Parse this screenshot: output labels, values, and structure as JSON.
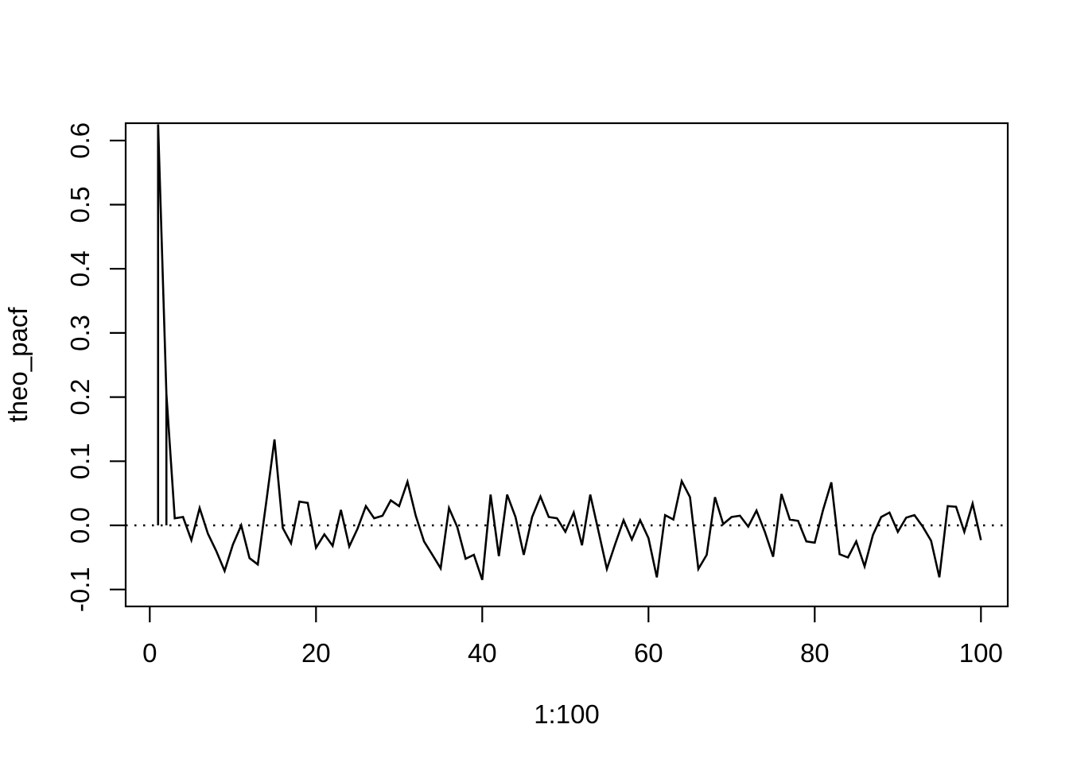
{
  "figure": {
    "background_color": "#ffffff",
    "foreground_color": "#000000",
    "xlab": "1:100",
    "ylab": "theo_pacf",
    "x_tick_labels": [
      "0",
      "20",
      "40",
      "60",
      "80",
      "100"
    ],
    "y_tick_labels": [
      "-0.1",
      "0.0",
      "0.1",
      "0.2",
      "0.3",
      "0.4",
      "0.5",
      "0.6"
    ]
  },
  "chart_data": {
    "type": "line",
    "title": "",
    "xlabel": "1:100",
    "ylabel": "theo_pacf",
    "xlim": [
      -3,
      104
    ],
    "ylim": [
      -0.127,
      0.627
    ],
    "grid": false,
    "legend": "none",
    "x_ticks": [
      0,
      20,
      40,
      60,
      80,
      100
    ],
    "y_ticks": [
      -0.1,
      0.0,
      0.1,
      0.2,
      0.3,
      0.4,
      0.5,
      0.6
    ],
    "reference_line": {
      "y": 0,
      "style": "dotted"
    },
    "spikes": [
      {
        "x": 1,
        "y0": 0,
        "y1": 0.625
      },
      {
        "x": 2,
        "y0": 0,
        "y1": 0.205
      }
    ],
    "x": [
      1,
      2,
      3,
      4,
      5,
      6,
      7,
      8,
      9,
      10,
      11,
      12,
      13,
      14,
      15,
      16,
      17,
      18,
      19,
      20,
      21,
      22,
      23,
      24,
      25,
      26,
      27,
      28,
      29,
      30,
      31,
      32,
      33,
      34,
      35,
      36,
      37,
      38,
      39,
      40,
      41,
      42,
      43,
      44,
      45,
      46,
      47,
      48,
      49,
      50,
      51,
      52,
      53,
      54,
      55,
      56,
      57,
      58,
      59,
      60,
      61,
      62,
      63,
      64,
      65,
      66,
      67,
      68,
      69,
      70,
      71,
      72,
      73,
      74,
      75,
      76,
      77,
      78,
      79,
      80,
      81,
      82,
      83,
      84,
      85,
      86,
      87,
      88,
      89,
      90,
      91,
      92,
      93,
      94,
      95,
      96,
      97,
      98,
      99,
      100
    ],
    "values": [
      0.625,
      0.205,
      0.011,
      0.013,
      -0.023,
      0.027,
      -0.013,
      -0.04,
      -0.071,
      -0.03,
      0.0,
      -0.051,
      -0.061,
      0.035,
      0.134,
      -0.004,
      -0.028,
      0.037,
      0.035,
      -0.035,
      -0.014,
      -0.032,
      0.024,
      -0.033,
      -0.005,
      0.03,
      0.011,
      0.015,
      0.039,
      0.03,
      0.068,
      0.015,
      -0.025,
      -0.046,
      -0.067,
      0.027,
      -0.003,
      -0.052,
      -0.046,
      -0.085,
      0.048,
      -0.048,
      0.048,
      0.013,
      -0.046,
      0.013,
      0.045,
      0.013,
      0.011,
      -0.01,
      0.02,
      -0.031,
      0.048,
      -0.01,
      -0.068,
      -0.029,
      0.008,
      -0.022,
      0.008,
      -0.02,
      -0.081,
      0.016,
      0.009,
      0.069,
      0.044,
      -0.068,
      -0.046,
      0.044,
      0.002,
      0.013,
      0.015,
      -0.002,
      0.023,
      -0.01,
      -0.049,
      0.049,
      0.009,
      0.007,
      -0.025,
      -0.027,
      0.024,
      0.067,
      -0.045,
      -0.05,
      -0.025,
      -0.064,
      -0.015,
      0.013,
      0.02,
      -0.01,
      0.012,
      0.016,
      -0.002,
      -0.024,
      -0.081,
      0.03,
      0.029,
      -0.01,
      0.034,
      -0.023
    ]
  }
}
